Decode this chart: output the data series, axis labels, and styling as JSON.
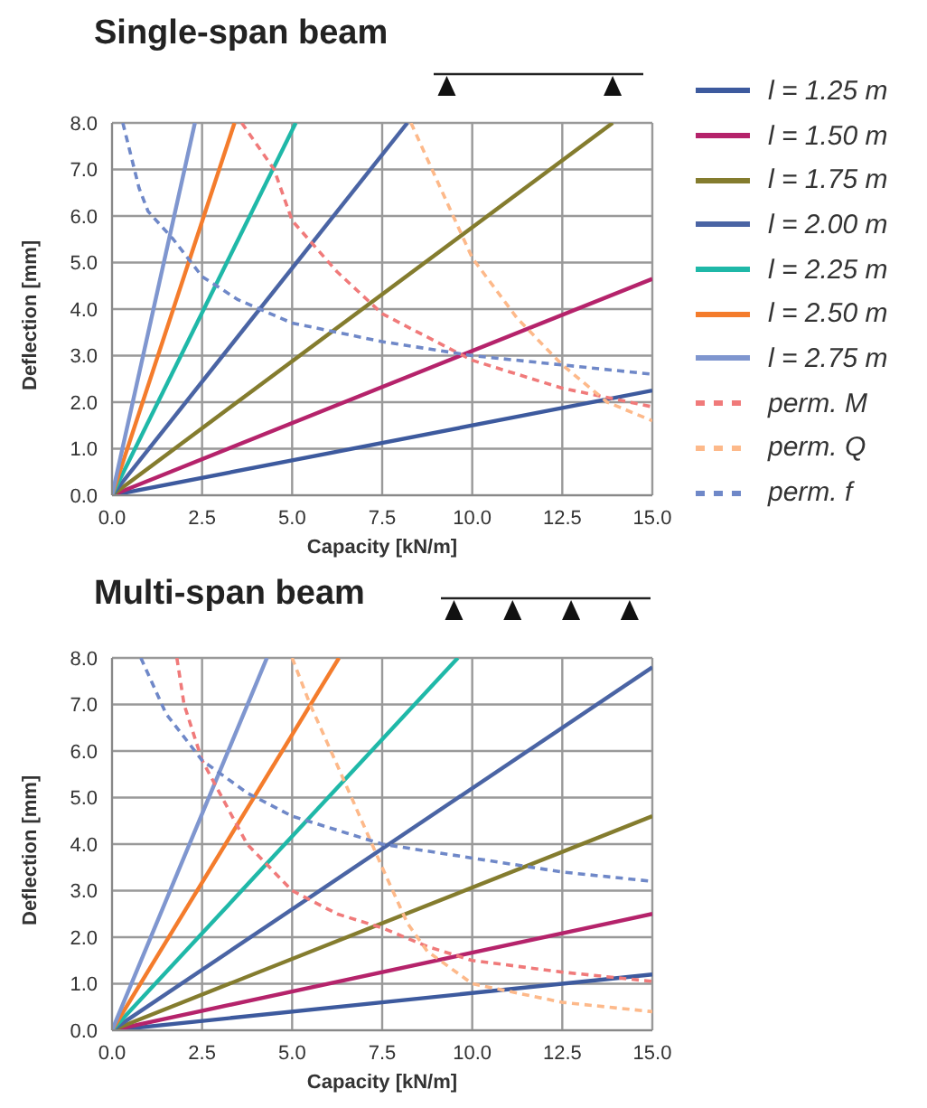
{
  "chart_data": [
    {
      "type": "line",
      "title": "Single-span beam",
      "xlabel": "Capacity [kN/m]",
      "ylabel": "Deflection [mm]",
      "xlim": [
        0,
        15
      ],
      "ylim": [
        0,
        8
      ],
      "xticks": [
        {
          "value": 0,
          "label": "0.0"
        },
        {
          "value": 2.5,
          "label": "2.5"
        },
        {
          "value": 5,
          "label": "5.0"
        },
        {
          "value": 7.5,
          "label": "7.5"
        },
        {
          "value": 10,
          "label": "10.0"
        },
        {
          "value": 12.5,
          "label": "12.5"
        },
        {
          "value": 15,
          "label": "15.0"
        }
      ],
      "yticks": [
        {
          "value": 0,
          "label": "0.0"
        },
        {
          "value": 1,
          "label": "1.0"
        },
        {
          "value": 2,
          "label": "2.0"
        },
        {
          "value": 3,
          "label": "3.0"
        },
        {
          "value": 4,
          "label": "4.0"
        },
        {
          "value": 5,
          "label": "5.0"
        },
        {
          "value": 6,
          "label": "6.0"
        },
        {
          "value": 7,
          "label": "7.0"
        },
        {
          "value": 8,
          "label": "8.0"
        }
      ],
      "grid": true,
      "legend": "right",
      "marker": "none",
      "series": [
        {
          "name": "l = 1.25 m",
          "color": "#3d5a9e",
          "line_style": "solid",
          "x": [
            0,
            15
          ],
          "values": [
            0,
            2.25
          ]
        },
        {
          "name": "l = 1.50 m",
          "color": "#b5236b",
          "line_style": "solid",
          "x": [
            0,
            15
          ],
          "values": [
            0,
            4.65
          ]
        },
        {
          "name": "l = 1.75 m",
          "color": "#847c2e",
          "line_style": "solid",
          "x": [
            0,
            13.9
          ],
          "values": [
            0,
            8
          ]
        },
        {
          "name": "l = 2.00 m",
          "color": "#4a64a4",
          "line_style": "solid",
          "x": [
            0,
            8.2
          ],
          "values": [
            0,
            8
          ]
        },
        {
          "name": "l = 2.25 m",
          "color": "#1fb8a8",
          "line_style": "solid",
          "x": [
            0,
            5.1
          ],
          "values": [
            0,
            8
          ]
        },
        {
          "name": "l = 2.50 m",
          "color": "#f47c2c",
          "line_style": "solid",
          "x": [
            0,
            3.4
          ],
          "values": [
            0,
            8
          ]
        },
        {
          "name": "l = 2.75 m",
          "color": "#7f96cf",
          "line_style": "solid",
          "x": [
            0,
            2.3
          ],
          "values": [
            0,
            8
          ]
        },
        {
          "name": "perm. M",
          "color": "#f07a7a",
          "line_style": "dashed",
          "x": [
            3.6,
            4.5,
            5,
            6.25,
            7.5,
            10,
            12.5,
            15
          ],
          "values": [
            8,
            7,
            5.9,
            4.8,
            3.9,
            2.9,
            2.3,
            1.9
          ]
        },
        {
          "name": "perm. Q",
          "color": "#fdb98a",
          "line_style": "dashed",
          "x": [
            8.3,
            9,
            10,
            11.25,
            12.5,
            13.75,
            15
          ],
          "values": [
            8,
            6.8,
            5.1,
            3.8,
            2.8,
            2,
            1.6
          ]
        },
        {
          "name": "perm. f",
          "color": "#6f88c8",
          "line_style": "dashed",
          "x": [
            0.3,
            0.75,
            1,
            1.7,
            2.5,
            3.5,
            5,
            7.5,
            10,
            12.5,
            15
          ],
          "values": [
            8,
            6.6,
            6.1,
            5.5,
            4.7,
            4.2,
            3.7,
            3.3,
            3,
            2.8,
            2.6
          ]
        }
      ]
    },
    {
      "type": "line",
      "title": "Multi-span beam",
      "xlabel": "Capacity [kN/m]",
      "ylabel": "Deflection [mm]",
      "xlim": [
        0,
        15
      ],
      "ylim": [
        0,
        8
      ],
      "xticks": [
        {
          "value": 0,
          "label": "0.0"
        },
        {
          "value": 2.5,
          "label": "2.5"
        },
        {
          "value": 5,
          "label": "5.0"
        },
        {
          "value": 7.5,
          "label": "7.5"
        },
        {
          "value": 10,
          "label": "10.0"
        },
        {
          "value": 12.5,
          "label": "12.5"
        },
        {
          "value": 15,
          "label": "15.0"
        }
      ],
      "yticks": [
        {
          "value": 0,
          "label": "0.0"
        },
        {
          "value": 1,
          "label": "1.0"
        },
        {
          "value": 2,
          "label": "2.0"
        },
        {
          "value": 3,
          "label": "3.0"
        },
        {
          "value": 4,
          "label": "4.0"
        },
        {
          "value": 5,
          "label": "5.0"
        },
        {
          "value": 6,
          "label": "6.0"
        },
        {
          "value": 7,
          "label": "7.0"
        },
        {
          "value": 8,
          "label": "8.0"
        }
      ],
      "grid": true,
      "marker": "none",
      "series": [
        {
          "color": "#3d5a9e",
          "line_style": "solid",
          "x": [
            0,
            15
          ],
          "values": [
            0,
            1.2
          ]
        },
        {
          "color": "#b5236b",
          "line_style": "solid",
          "x": [
            0,
            15
          ],
          "values": [
            0,
            2.5
          ]
        },
        {
          "color": "#847c2e",
          "line_style": "solid",
          "x": [
            0,
            15
          ],
          "values": [
            0,
            4.6
          ]
        },
        {
          "color": "#4a64a4",
          "line_style": "solid",
          "x": [
            0,
            15
          ],
          "values": [
            0,
            7.8
          ]
        },
        {
          "color": "#1fb8a8",
          "line_style": "solid",
          "x": [
            0,
            9.6
          ],
          "values": [
            0,
            8
          ]
        },
        {
          "color": "#f47c2c",
          "line_style": "solid",
          "x": [
            0,
            6.3
          ],
          "values": [
            0,
            8
          ]
        },
        {
          "color": "#7f96cf",
          "line_style": "solid",
          "x": [
            0,
            4.3
          ],
          "values": [
            0,
            8
          ]
        },
        {
          "color": "#f07a7a",
          "line_style": "dashed",
          "x": [
            1.8,
            2,
            2.5,
            3.75,
            5,
            6.25,
            7.5,
            8.75,
            10,
            12.5,
            15
          ],
          "values": [
            8,
            7,
            5.8,
            4,
            3,
            2.5,
            2.2,
            1.8,
            1.5,
            1.25,
            1.05
          ]
        },
        {
          "color": "#fdb98a",
          "line_style": "dashed",
          "x": [
            5,
            5.5,
            6.25,
            7.5,
            8.2,
            8.75,
            10,
            12.5,
            15
          ],
          "values": [
            8,
            7,
            5.7,
            3.5,
            2.3,
            1.7,
            1,
            0.6,
            0.4
          ]
        },
        {
          "color": "#6f88c8",
          "line_style": "dashed",
          "x": [
            0.8,
            1.5,
            2.5,
            3.75,
            5,
            7.5,
            10,
            12.5,
            15
          ],
          "values": [
            8,
            6.8,
            5.8,
            5.1,
            4.6,
            4,
            3.7,
            3.4,
            3.2
          ]
        }
      ]
    }
  ]
}
